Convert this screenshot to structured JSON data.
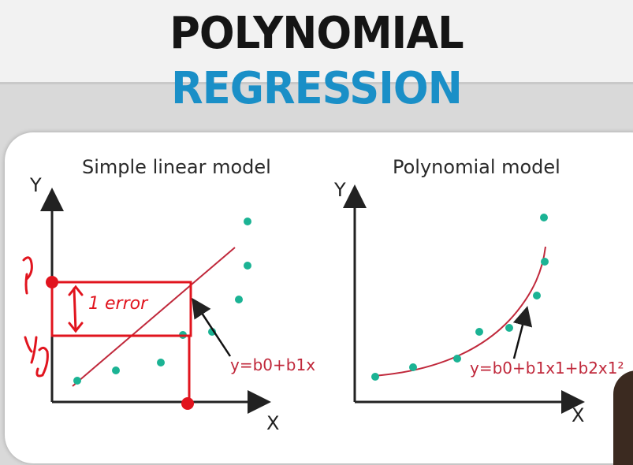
{
  "header": {
    "title_word1": "POLYNOMIAL",
    "title_word2": "REGRESSION",
    "colors": {
      "word1": "#151515",
      "word2": "#1a8fc7"
    }
  },
  "left_panel": {
    "title": "Simple linear model",
    "y_label": "Y",
    "x_label": "X",
    "equation": "y=b0+b1x",
    "handwritten": {
      "top_mark": "ŷ",
      "box_note": "1 error",
      "bottom_mark": "y_m"
    },
    "points": [
      [
        1,
        1
      ],
      [
        2,
        2
      ],
      [
        3,
        2.5
      ],
      [
        5,
        4
      ],
      [
        6,
        5
      ],
      [
        7,
        7.5
      ],
      [
        7.2,
        9.4
      ],
      [
        7.3,
        12
      ]
    ]
  },
  "right_panel": {
    "title": "Polynomial model",
    "y_label": "Y",
    "x_label": "X",
    "equation": "y=b0+b1x1+b2x1²",
    "points": [
      [
        0.5,
        0.5
      ],
      [
        1.5,
        1
      ],
      [
        2.5,
        1.5
      ],
      [
        3.5,
        3.6
      ],
      [
        4.2,
        4.2
      ],
      [
        5.1,
        6.2
      ],
      [
        5.3,
        9
      ],
      [
        5.3,
        12
      ]
    ]
  },
  "colors": {
    "point": "#1bb394",
    "fit_line": "#c0283b",
    "ink": "#e1141e",
    "axis": "#222222"
  }
}
